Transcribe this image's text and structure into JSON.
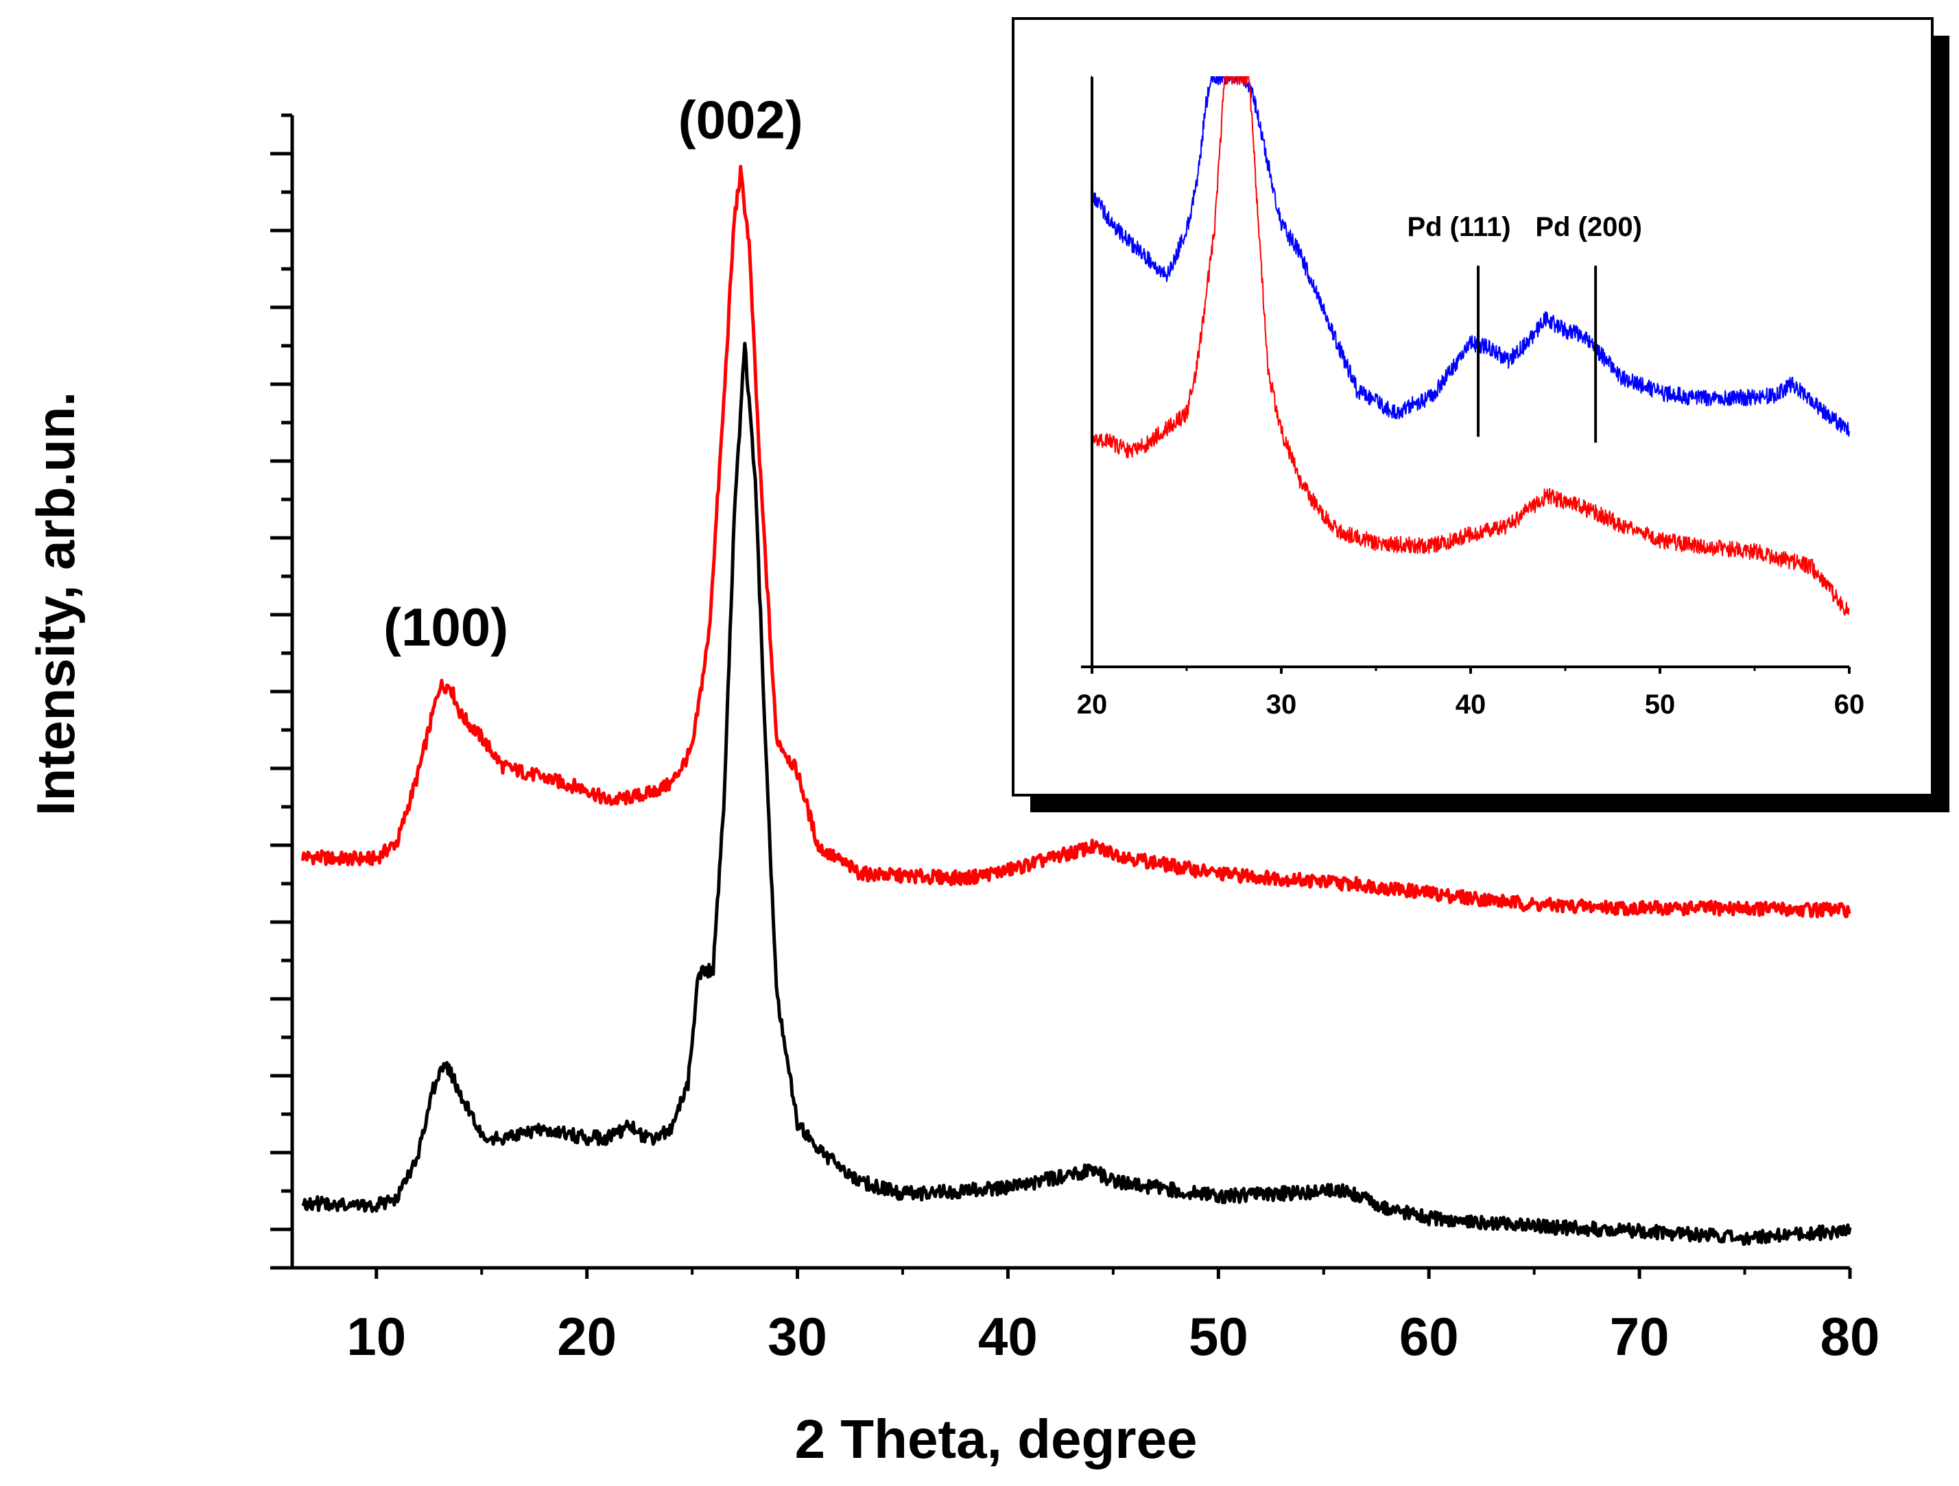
{
  "chart_data": [
    {
      "type": "line",
      "title": "",
      "xlabel": "2 Theta, degree",
      "ylabel": "Intensity, arb.un.",
      "xlim": [
        6,
        80
      ],
      "ylim": [
        0,
        100
      ],
      "x_ticks": [
        10,
        20,
        30,
        40,
        50,
        60,
        70,
        80
      ],
      "x_tick_labels": [
        "10",
        "20",
        "30",
        "40",
        "50",
        "60",
        "70",
        "80"
      ],
      "y_tick_labels_shown": false,
      "annotations": [
        {
          "text": "(100)",
          "x": 13.3,
          "y": 54
        },
        {
          "text": "(002)",
          "x": 27.3,
          "y": 98
        }
      ],
      "series": [
        {
          "name": "upper trace",
          "color": "#ff0000",
          "x": [
            6.5,
            8,
            10,
            11,
            12,
            13,
            13.5,
            14,
            15,
            16,
            18,
            20,
            21,
            22,
            23,
            24,
            25,
            25.8,
            26.5,
            27,
            27.3,
            27.7,
            28.2,
            29,
            30,
            31,
            33,
            35,
            38,
            40,
            42,
            44,
            46,
            48,
            50,
            55,
            57,
            60,
            65,
            70,
            75,
            80
          ],
          "y": [
            35.7,
            35.5,
            35.5,
            37,
            43,
            50.5,
            50.5,
            48,
            46,
            43.5,
            42.5,
            41.5,
            40.5,
            40.8,
            41.2,
            42,
            45,
            55,
            75,
            91,
            95,
            89,
            70,
            46,
            43,
            36.5,
            34.2,
            34,
            33.8,
            34.5,
            35.5,
            36.5,
            35.5,
            34.8,
            34.2,
            33.5,
            33.2,
            32.5,
            31.5,
            31.2,
            31.2,
            31
          ]
        },
        {
          "name": "lower trace",
          "color": "#000000",
          "x": [
            6.5,
            8,
            10,
            11,
            12,
            12.7,
            13.3,
            14,
            15,
            16,
            18,
            20,
            21,
            22,
            23,
            24,
            24.8,
            25.3,
            26,
            26.5,
            27,
            27.5,
            28,
            28.5,
            29,
            30,
            31,
            33,
            35,
            40,
            44,
            45,
            50,
            56,
            58,
            60,
            65,
            70,
            75,
            80
          ],
          "y": [
            5.7,
            5.4,
            5.4,
            6,
            10,
            15.5,
            17.8,
            15,
            11.5,
            11.2,
            12,
            11.3,
            11.3,
            12.3,
            11,
            12,
            16,
            25.5,
            26,
            40,
            65,
            80,
            68,
            45,
            24,
            12.5,
            10.2,
            7.5,
            6.4,
            6.9,
            8.5,
            7.5,
            6.2,
            6.7,
            5.2,
            4.3,
            3.6,
            3.2,
            2.6,
            3.2
          ]
        }
      ]
    },
    {
      "type": "line",
      "title": "",
      "xlabel": "",
      "ylabel": "",
      "xlim": [
        20,
        60
      ],
      "ylim": [
        0,
        100
      ],
      "x_ticks": [
        20,
        30,
        40,
        50,
        60
      ],
      "x_tick_labels": [
        "20",
        "30",
        "40",
        "50",
        "60"
      ],
      "y_tick_labels_shown": false,
      "annotations": [
        {
          "text": "Pd (111)",
          "x": 40.4,
          "y": 73,
          "line_from": 68,
          "line_to": 39
        },
        {
          "text": "Pd (200)",
          "x": 46.6,
          "y": 73,
          "line_from": 68,
          "line_to": 38
        }
      ],
      "series": [
        {
          "name": "blue trace",
          "color": "#0000ff",
          "x": [
            20,
            21,
            22,
            23,
            24,
            25,
            25.6,
            26,
            26.3,
            28,
            28.5,
            29,
            29.5,
            30,
            31,
            32,
            34,
            36,
            38,
            40,
            41,
            42,
            43,
            44,
            45,
            46,
            48,
            50,
            52,
            54,
            56,
            57,
            58,
            60
          ],
          "y": [
            80,
            75.5,
            72,
            69,
            66.5,
            74,
            83,
            95,
            100,
            100,
            97,
            90,
            82,
            75,
            70,
            62,
            47,
            43,
            46,
            55,
            54,
            52,
            55,
            59,
            57,
            56,
            49,
            46.5,
            45.5,
            45.5,
            46,
            48,
            45,
            40
          ]
        },
        {
          "name": "red trace",
          "color": "#ff0000",
          "x": [
            20,
            21,
            22,
            23,
            24,
            25,
            25.5,
            26,
            26.5,
            27,
            27.5,
            28,
            28.3,
            28.8,
            29.3,
            30,
            31,
            32,
            33,
            35,
            38,
            40,
            42,
            44,
            45,
            46,
            48,
            50,
            52,
            55,
            58,
            60
          ],
          "y": [
            39,
            38,
            36.5,
            38,
            40.5,
            43,
            50,
            62,
            75,
            100,
            100,
            100,
            100,
            75,
            50,
            40,
            31.5,
            26.5,
            23,
            21,
            20.5,
            22.5,
            24,
            29,
            28,
            27,
            24,
            21.5,
            20.5,
            19.5,
            17,
            9
          ]
        }
      ]
    }
  ]
}
